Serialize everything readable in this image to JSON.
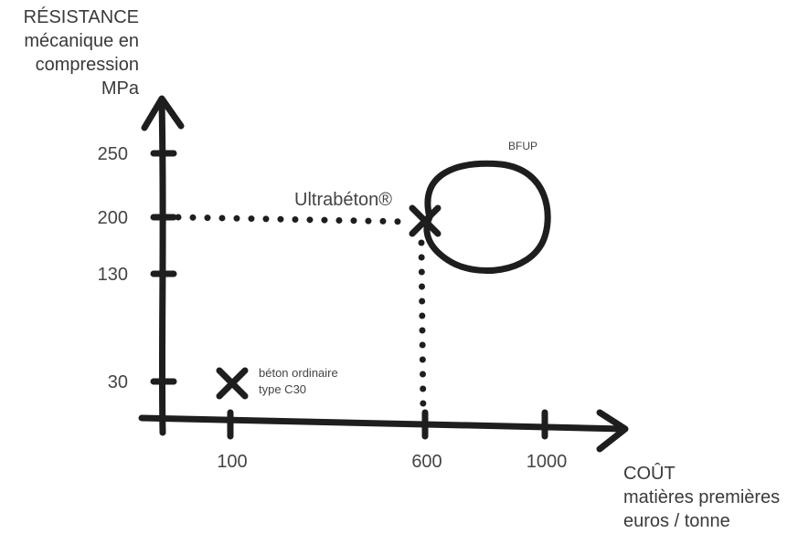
{
  "chart_data": {
    "type": "scatter",
    "ylabel_lines": [
      "RÉSISTANCE",
      "mécanique en",
      "compression",
      "MPa"
    ],
    "xlabel_lines": [
      "COÛT",
      "matières premières",
      "euros / tonne"
    ],
    "y_ticks": [
      "250",
      "200",
      "130",
      "30"
    ],
    "x_ticks": [
      "100",
      "600",
      "1000"
    ],
    "points": [
      {
        "label_lines": [
          "béton ordinaire",
          "type C30"
        ],
        "x": 100,
        "y": 30,
        "marker": "x"
      },
      {
        "label_lines": [
          "Ultrabéton®"
        ],
        "x": 600,
        "y": 200,
        "marker": "x",
        "guides": true
      }
    ],
    "region": {
      "label": "BFUP",
      "shape": "circle"
    },
    "grid": false,
    "colors": {
      "ink": "#1e1e1e",
      "text": "#444444"
    }
  }
}
